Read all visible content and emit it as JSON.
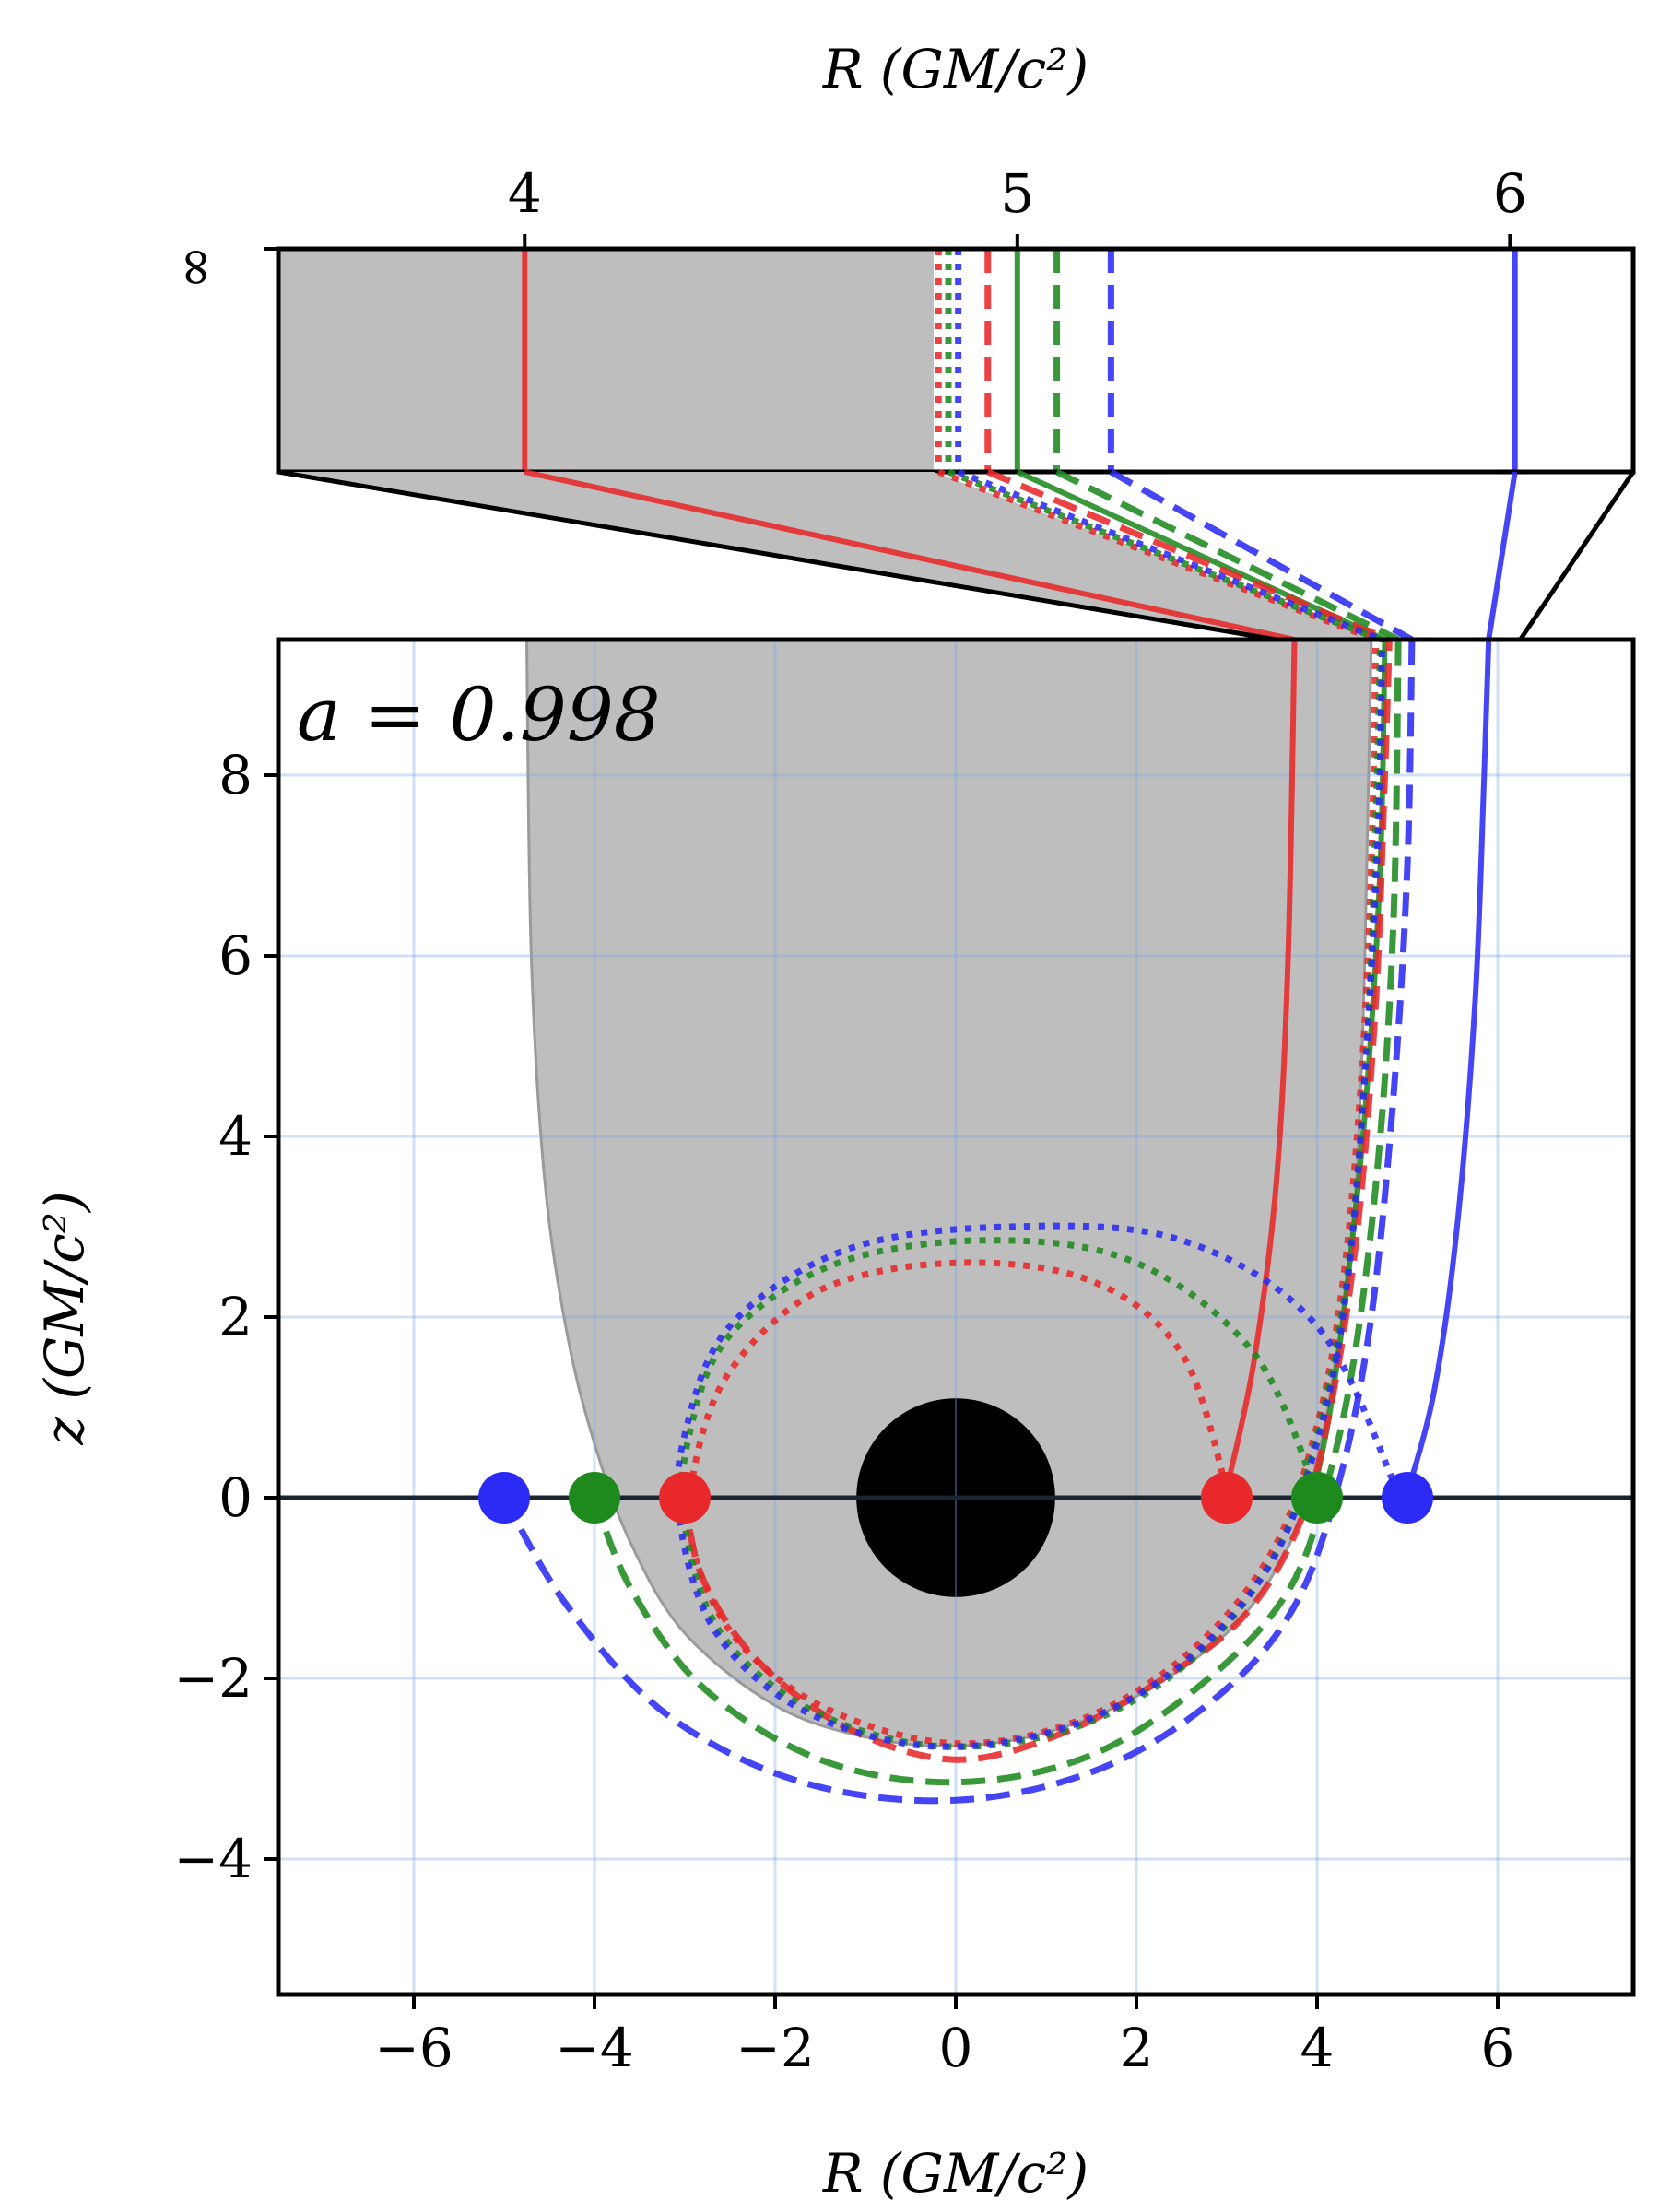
{
  "chart_data": {
    "type": "line",
    "annotation": "a = 0.998",
    "colors": {
      "red": "#e8282a",
      "green": "#1e8a1e",
      "blue": "#2b2bf5",
      "shade": "#bebebe",
      "horizon": "#000000",
      "axis_line": "#1a2433"
    },
    "main": {
      "xlabel": "R (GM/c²)",
      "ylabel": "z (GM/c²)",
      "xlim": [
        -7.5,
        7.5
      ],
      "ylim": [
        -5.5,
        9.5
      ],
      "xticks": [
        -6,
        -4,
        -2,
        0,
        2,
        4,
        6
      ],
      "xtick_labels": [
        "−6",
        "−4",
        "−2",
        "0",
        "2",
        "4",
        "6"
      ],
      "yticks": [
        -4,
        -2,
        0,
        2,
        4,
        6,
        8
      ],
      "ytick_labels": [
        "−4",
        "−2",
        "0",
        "2",
        "4",
        "6",
        "8"
      ],
      "grid": true,
      "horizon_radius": 1.1,
      "footpoints": [
        {
          "color": "blue",
          "R": -5,
          "z": 0
        },
        {
          "color": "green",
          "R": -4,
          "z": 0
        },
        {
          "color": "red",
          "R": -3,
          "z": 0
        },
        {
          "color": "red",
          "R": 3,
          "z": 0
        },
        {
          "color": "green",
          "R": 4,
          "z": 0
        },
        {
          "color": "blue",
          "R": 5,
          "z": 0
        }
      ],
      "shade_boundary": [
        [
          -4.75,
          9.5
        ],
        [
          -4.7,
          6
        ],
        [
          -4.55,
          3.5
        ],
        [
          -4.3,
          1.8
        ],
        [
          -4.0,
          0.6
        ],
        [
          -3.6,
          -0.5
        ],
        [
          -3.0,
          -1.5
        ],
        [
          -2.0,
          -2.3
        ],
        [
          -1.0,
          -2.65
        ],
        [
          0,
          -2.75
        ],
        [
          1.0,
          -2.6
        ],
        [
          2.0,
          -2.2
        ],
        [
          3.0,
          -1.5
        ],
        [
          3.6,
          -0.7
        ],
        [
          3.95,
          0.2
        ],
        [
          4.2,
          1.5
        ],
        [
          4.4,
          3.0
        ],
        [
          4.5,
          5.0
        ],
        [
          4.55,
          7.0
        ],
        [
          4.6,
          9.5
        ]
      ],
      "series": [
        {
          "color": "red",
          "style": "solid",
          "points": [
            [
              3,
              0.1
            ],
            [
              3.3,
              1.5
            ],
            [
              3.55,
              3.5
            ],
            [
              3.68,
              6.0
            ],
            [
              3.75,
              9.5
            ]
          ]
        },
        {
          "color": "green",
          "style": "solid",
          "points": [
            [
              3.95,
              0.0
            ],
            [
              4.15,
              1.0
            ],
            [
              4.35,
              2.5
            ],
            [
              4.55,
              4.5
            ],
            [
              4.7,
              7.0
            ],
            [
              4.75,
              9.5
            ]
          ]
        },
        {
          "color": "blue",
          "style": "solid",
          "points": [
            [
              5,
              0.05
            ],
            [
              5.3,
              1.2
            ],
            [
              5.55,
              3.0
            ],
            [
              5.75,
              5.5
            ],
            [
              5.85,
              8.0
            ],
            [
              5.9,
              9.5
            ]
          ]
        },
        {
          "color": "red",
          "style": "dashed",
          "points": [
            [
              -3,
              0
            ],
            [
              -2.8,
              -0.9
            ],
            [
              -2.2,
              -1.8
            ],
            [
              -1.2,
              -2.55
            ],
            [
              0,
              -2.9
            ],
            [
              1.2,
              -2.6
            ],
            [
              2.3,
              -2.0
            ],
            [
              3.2,
              -1.3
            ],
            [
              3.8,
              -0.3
            ],
            [
              4.15,
              1.0
            ],
            [
              4.45,
              3.0
            ],
            [
              4.65,
              5.5
            ],
            [
              4.75,
              8.0
            ],
            [
              4.8,
              9.5
            ]
          ]
        },
        {
          "color": "green",
          "style": "dashed",
          "points": [
            [
              -4,
              0
            ],
            [
              -3.6,
              -1.0
            ],
            [
              -2.8,
              -2.1
            ],
            [
              -1.5,
              -2.9
            ],
            [
              0,
              -3.15
            ],
            [
              1.5,
              -2.85
            ],
            [
              2.8,
              -2.0
            ],
            [
              3.7,
              -1.0
            ],
            [
              4.15,
              0.3
            ],
            [
              4.45,
              1.8
            ],
            [
              4.7,
              4.0
            ],
            [
              4.85,
              6.5
            ],
            [
              4.9,
              9.5
            ]
          ]
        },
        {
          "color": "blue",
          "style": "dashed",
          "points": [
            [
              -5,
              0
            ],
            [
              -4.3,
              -1.2
            ],
            [
              -3.2,
              -2.4
            ],
            [
              -1.7,
              -3.15
            ],
            [
              0,
              -3.35
            ],
            [
              1.6,
              -3.0
            ],
            [
              2.9,
              -2.2
            ],
            [
              3.75,
              -1.2
            ],
            [
              4.25,
              0.2
            ],
            [
              4.6,
              2.0
            ],
            [
              4.85,
              4.5
            ],
            [
              5.0,
              7.0
            ],
            [
              5.05,
              9.5
            ]
          ]
        },
        {
          "color": "red",
          "style": "dotted",
          "points": [
            [
              3,
              0.1
            ],
            [
              2.5,
              1.6
            ],
            [
              1.5,
              2.4
            ],
            [
              0,
              2.6
            ],
            [
              -1.5,
              2.3
            ],
            [
              -2.5,
              1.4
            ],
            [
              -2.9,
              0.3
            ],
            [
              -2.9,
              -0.6
            ],
            [
              -2.4,
              -1.6
            ],
            [
              -1.4,
              -2.35
            ],
            [
              0,
              -2.72
            ],
            [
              1.4,
              -2.45
            ],
            [
              2.6,
              -1.7
            ],
            [
              3.5,
              -0.6
            ],
            [
              4.0,
              0.8
            ],
            [
              4.3,
              2.5
            ],
            [
              4.5,
              4.8
            ],
            [
              4.6,
              7.0
            ],
            [
              4.65,
              9.5
            ]
          ]
        },
        {
          "color": "green",
          "style": "dotted",
          "points": [
            [
              4,
              0.05
            ],
            [
              3.3,
              1.6
            ],
            [
              2.0,
              2.6
            ],
            [
              0.4,
              2.85
            ],
            [
              -1.3,
              2.6
            ],
            [
              -2.5,
              1.8
            ],
            [
              -2.95,
              0.7
            ],
            [
              -3.0,
              -0.3
            ],
            [
              -2.6,
              -1.5
            ],
            [
              -1.6,
              -2.35
            ],
            [
              -0.2,
              -2.75
            ],
            [
              1.3,
              -2.55
            ],
            [
              2.6,
              -1.8
            ],
            [
              3.55,
              -0.6
            ],
            [
              4.05,
              0.9
            ],
            [
              4.35,
              2.6
            ],
            [
              4.55,
              5.0
            ],
            [
              4.65,
              7.5
            ],
            [
              4.7,
              9.5
            ]
          ]
        },
        {
          "color": "blue",
          "style": "dotted",
          "points": [
            [
              4.9,
              0.05
            ],
            [
              4.0,
              1.9
            ],
            [
              2.5,
              2.85
            ],
            [
              0.6,
              3.0
            ],
            [
              -1.2,
              2.75
            ],
            [
              -2.5,
              1.9
            ],
            [
              -3.0,
              0.7
            ],
            [
              -3.05,
              -0.3
            ],
            [
              -2.65,
              -1.5
            ],
            [
              -1.7,
              -2.35
            ],
            [
              -0.3,
              -2.75
            ],
            [
              1.2,
              -2.55
            ],
            [
              2.5,
              -1.85
            ],
            [
              3.5,
              -0.7
            ],
            [
              4.05,
              0.8
            ],
            [
              4.35,
              2.5
            ],
            [
              4.55,
              5.0
            ],
            [
              4.68,
              7.5
            ],
            [
              4.72,
              9.5
            ]
          ]
        }
      ]
    },
    "inset": {
      "xlabel": "R (GM/c²)",
      "xlim": [
        3.5,
        6.25
      ],
      "xticks": [
        4,
        5,
        6
      ],
      "xtick_labels": [
        "4",
        "5",
        "6"
      ],
      "ytick_label": "∞",
      "shade_right": 4.83,
      "lines": [
        {
          "color": "red",
          "style": "solid",
          "R": 4.0
        },
        {
          "color": "red",
          "style": "dotted",
          "R": 4.84
        },
        {
          "color": "green",
          "style": "dotted",
          "R": 4.86
        },
        {
          "color": "blue",
          "style": "dotted",
          "R": 4.88
        },
        {
          "color": "red",
          "style": "dashed",
          "R": 4.94
        },
        {
          "color": "green",
          "style": "solid",
          "R": 5.0
        },
        {
          "color": "green",
          "style": "dashed",
          "R": 5.08
        },
        {
          "color": "blue",
          "style": "dashed",
          "R": 5.19
        },
        {
          "color": "blue",
          "style": "solid",
          "R": 6.01
        }
      ]
    }
  }
}
